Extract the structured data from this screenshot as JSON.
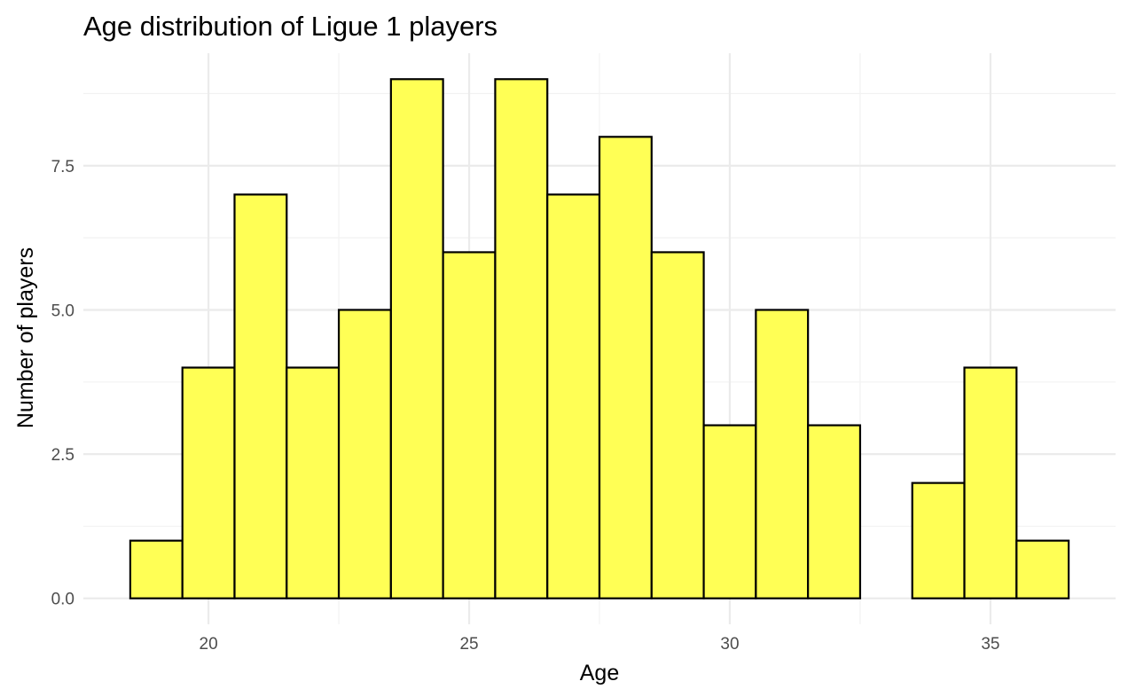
{
  "chart_data": {
    "type": "bar",
    "title": "Age distribution of Ligue 1 players",
    "xlabel": "Age",
    "ylabel": "Number of players",
    "bins": [
      {
        "x": 19,
        "count": 1
      },
      {
        "x": 20,
        "count": 4
      },
      {
        "x": 21,
        "count": 7
      },
      {
        "x": 22,
        "count": 4
      },
      {
        "x": 23,
        "count": 5
      },
      {
        "x": 24,
        "count": 9
      },
      {
        "x": 25,
        "count": 6
      },
      {
        "x": 26,
        "count": 9
      },
      {
        "x": 27,
        "count": 7
      },
      {
        "x": 28,
        "count": 8
      },
      {
        "x": 29,
        "count": 6
      },
      {
        "x": 30,
        "count": 3
      },
      {
        "x": 31,
        "count": 5
      },
      {
        "x": 32,
        "count": 3
      },
      {
        "x": 33,
        "count": 0
      },
      {
        "x": 34,
        "count": 2
      },
      {
        "x": 35,
        "count": 4
      },
      {
        "x": 36,
        "count": 1
      }
    ],
    "bin_width": 1,
    "xlim": [
      17.6,
      37.4
    ],
    "ylim": [
      -0.45,
      9.45
    ],
    "x_ticks": [
      20,
      25,
      30,
      35
    ],
    "x_tick_labels": [
      "20",
      "25",
      "30",
      "35"
    ],
    "y_ticks": [
      0,
      2.5,
      5,
      7.5
    ],
    "y_tick_labels": [
      "0.0",
      "2.5",
      "5.0",
      "7.5"
    ],
    "grid": true,
    "legend": "none",
    "colors": {
      "bar_fill": "#ffff55",
      "bar_outline": "#000000",
      "grid_major": "#ebebeb",
      "grid_minor": "#f2f2f2",
      "background": "#ffffff"
    }
  }
}
